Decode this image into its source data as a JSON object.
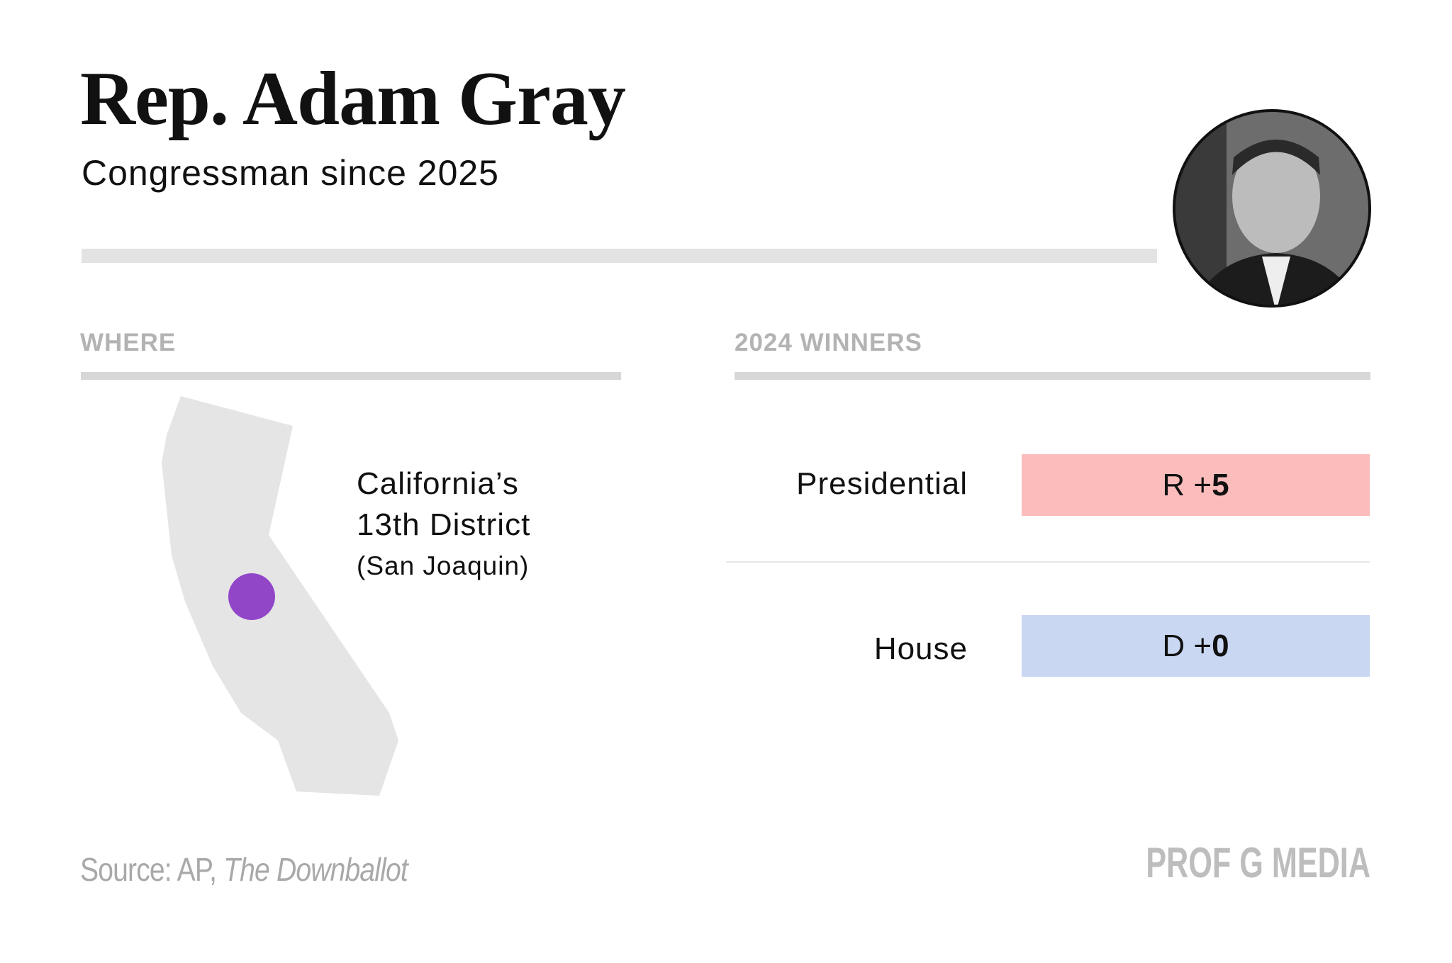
{
  "header": {
    "title": "Rep. Adam Gray",
    "subtitle": "Congressman since 2025"
  },
  "where": {
    "label": "WHERE",
    "district": [
      "California’s",
      "13th District"
    ],
    "region": "(San Joaquin)"
  },
  "winners": {
    "label": "2024 WINNERS",
    "rows": [
      {
        "label": "Presidential",
        "prefix": "R +",
        "margin": 5
      },
      {
        "label": "House",
        "prefix": "D +",
        "margin": 0
      }
    ]
  },
  "footer": {
    "source": "Source: AP, ",
    "source_italic": "The Downballot",
    "logo": "PROF G MEDIA"
  }
}
